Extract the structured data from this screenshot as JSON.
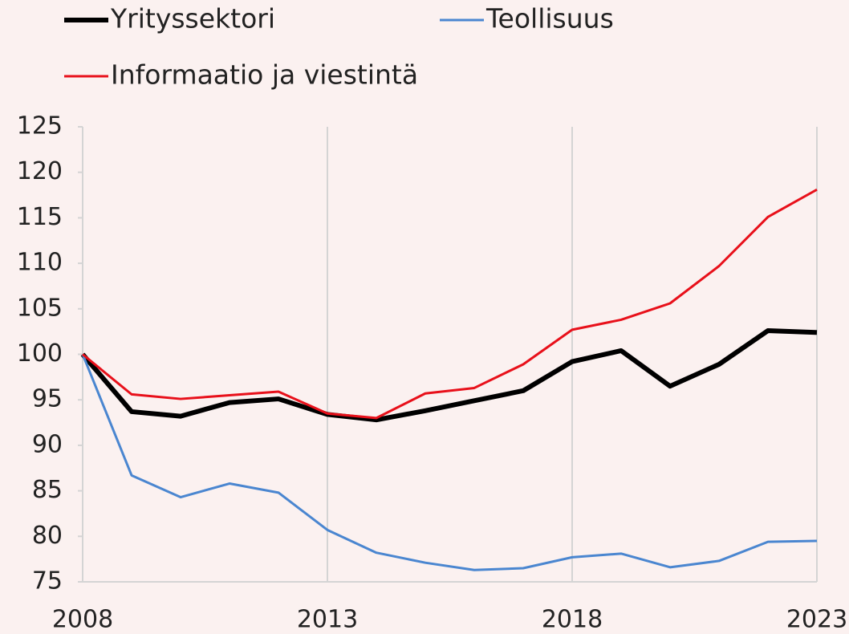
{
  "chart_data": {
    "type": "line",
    "x": [
      2008,
      2009,
      2010,
      2011,
      2012,
      2013,
      2014,
      2015,
      2016,
      2017,
      2018,
      2019,
      2020,
      2021,
      2022,
      2023
    ],
    "series": [
      {
        "name": "Yrityssektori",
        "color": "#000000",
        "values": [
          100,
          93.7,
          93.2,
          94.7,
          95.1,
          93.4,
          92.8,
          93.8,
          94.9,
          96.0,
          99.2,
          100.4,
          96.5,
          98.9,
          102.6,
          102.4
        ]
      },
      {
        "name": "Teollisuus",
        "color": "#4a86d0",
        "values": [
          100,
          86.7,
          84.3,
          85.8,
          84.8,
          80.7,
          78.2,
          77.1,
          76.3,
          76.5,
          77.7,
          78.1,
          76.6,
          77.3,
          79.4,
          79.5
        ]
      },
      {
        "name": "Informaatio ja viestintä",
        "color": "#e8101a",
        "values": [
          100,
          95.6,
          95.1,
          95.5,
          95.9,
          93.5,
          93.0,
          95.7,
          96.3,
          98.9,
          102.7,
          103.8,
          105.6,
          109.7,
          115.1,
          118.1
        ]
      }
    ],
    "xlim": [
      2008,
      2023
    ],
    "xticks": [
      2008,
      2013,
      2018,
      2023
    ],
    "ylim": [
      75,
      125
    ],
    "yticks": [
      75,
      80,
      85,
      90,
      95,
      100,
      105,
      110,
      115,
      120,
      125
    ],
    "grid": "x"
  }
}
